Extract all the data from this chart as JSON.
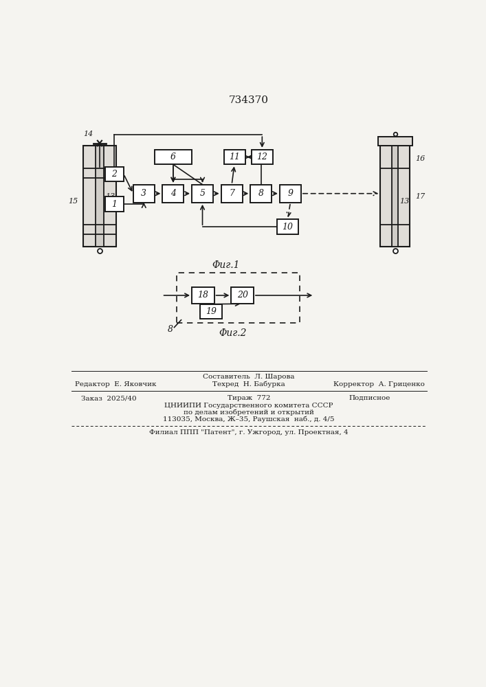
{
  "patent_number": "734370",
  "fig1_label": "Φиг.1",
  "fig2_label": "Φиг.2",
  "bg_color": "#f5f4f0",
  "line_color": "#1a1a1a",
  "box_color": "#ffffff",
  "text_color": "#1a1a1a"
}
